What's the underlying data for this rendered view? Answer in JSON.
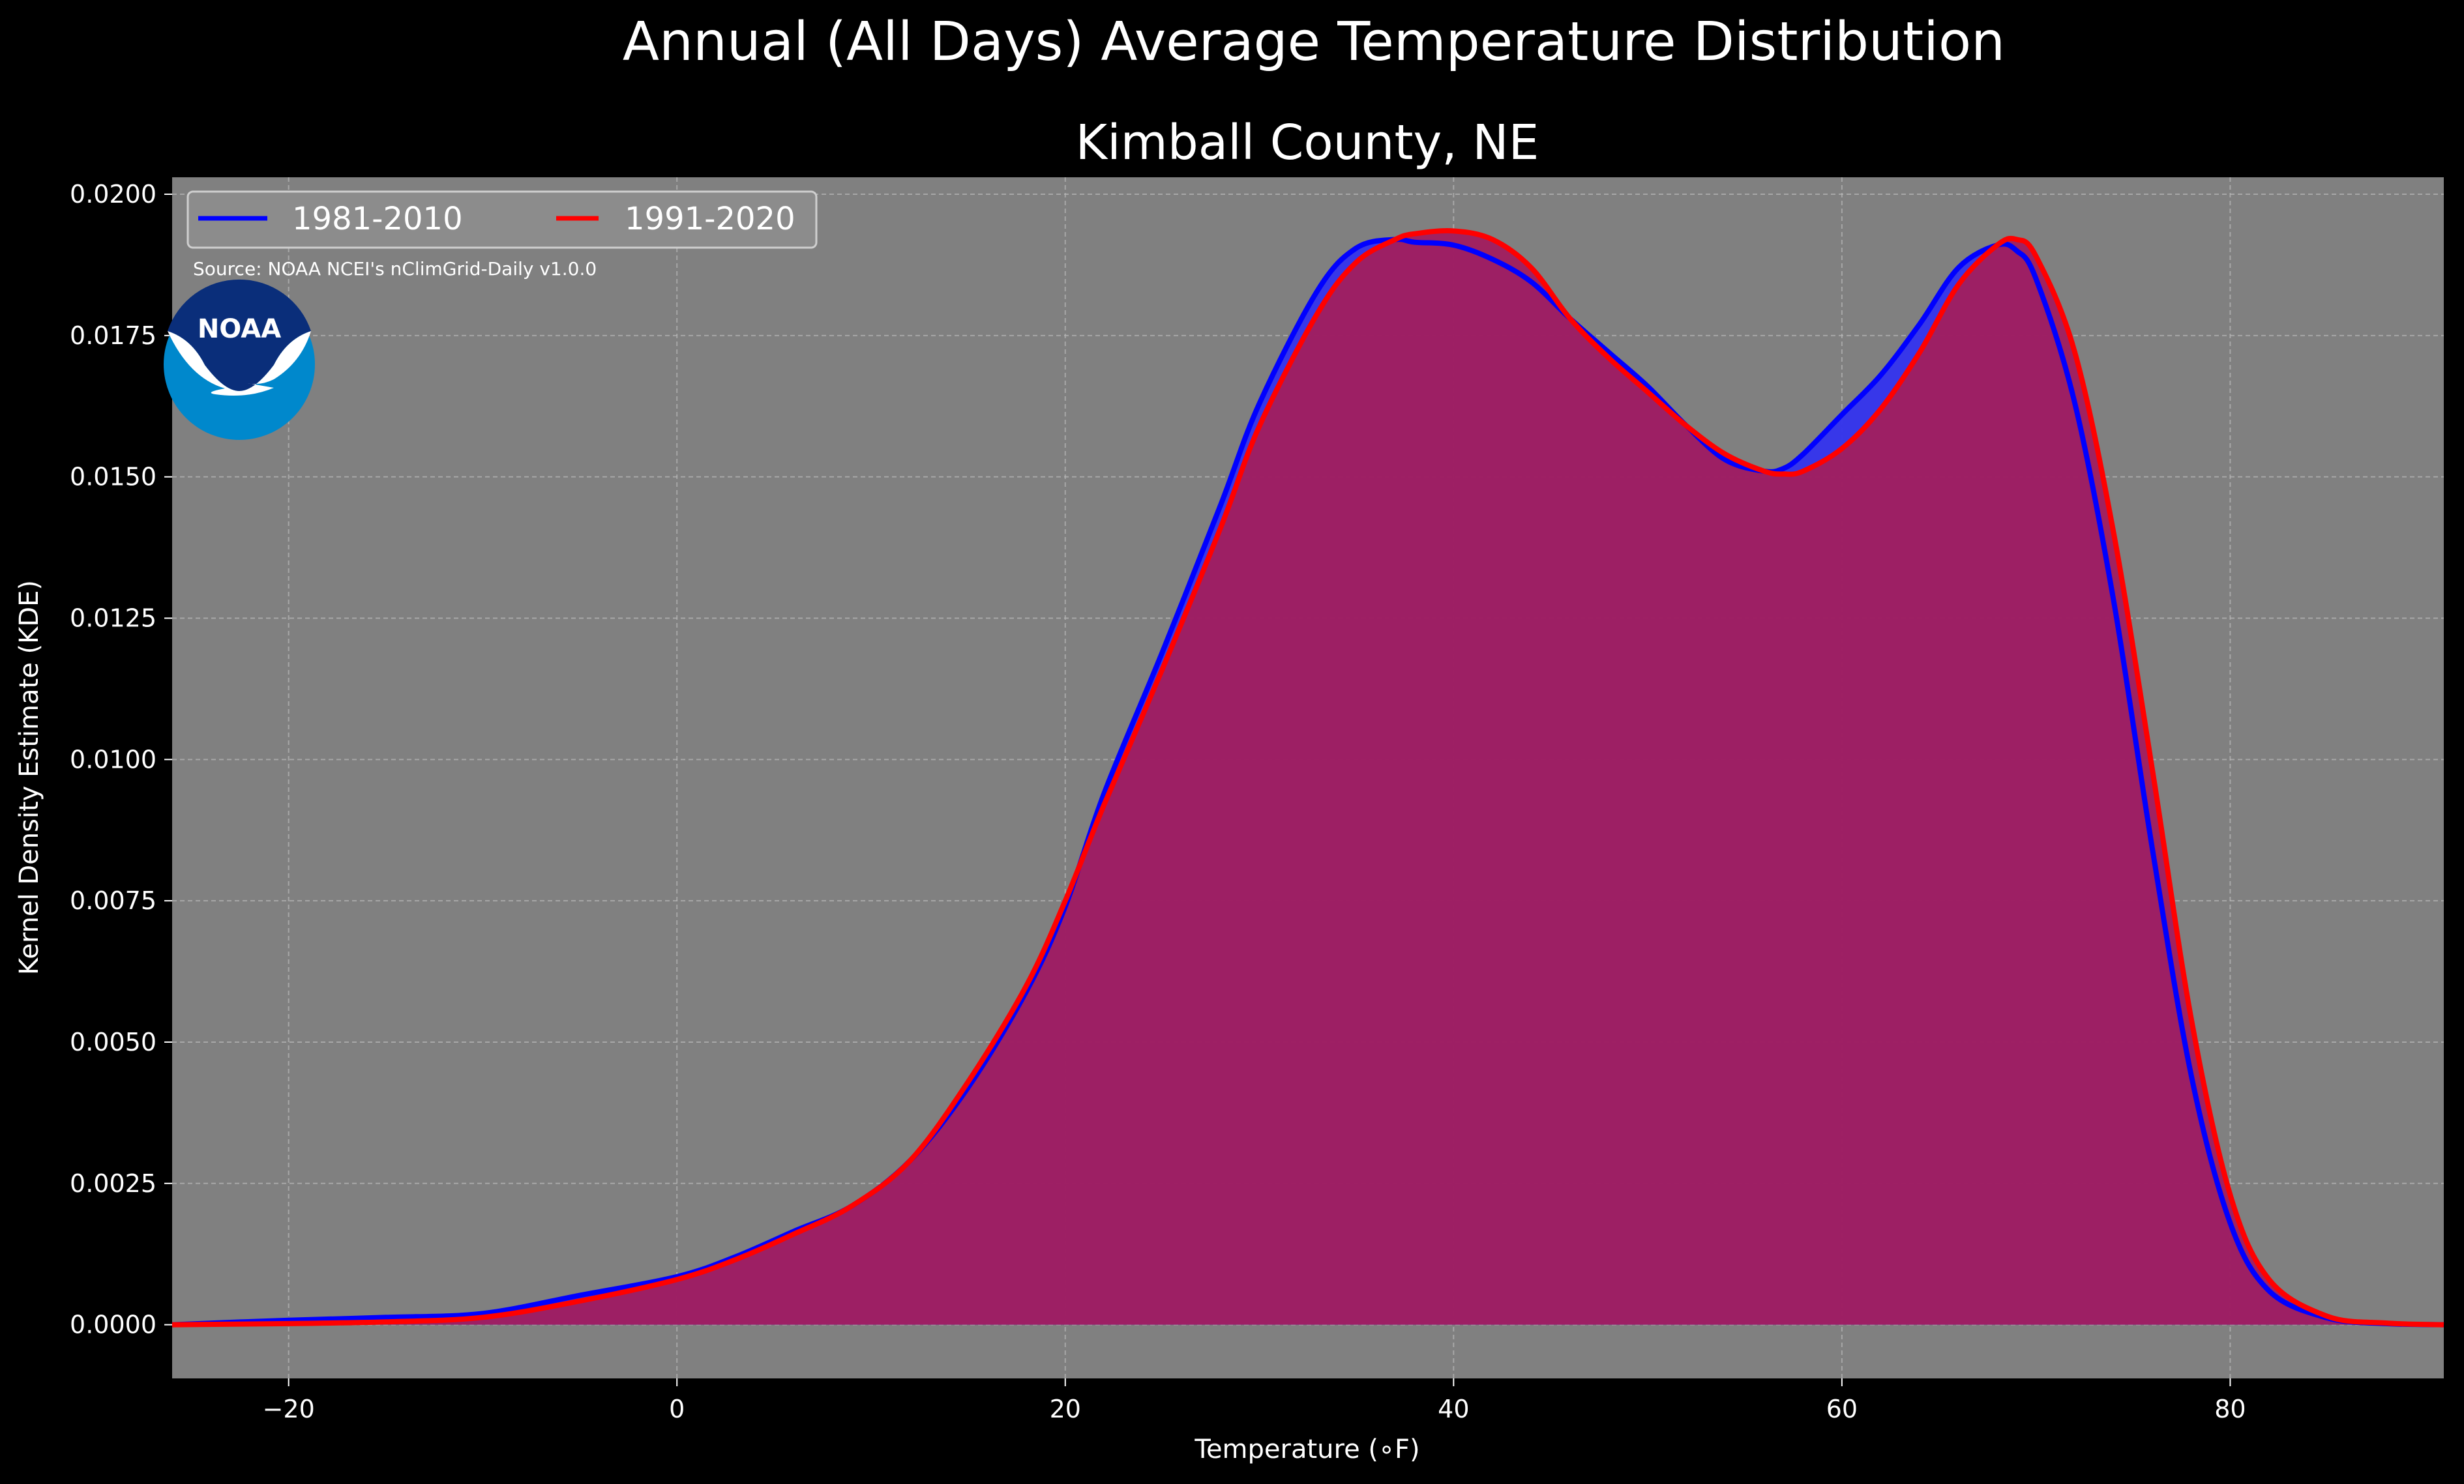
{
  "chart_data": {
    "type": "area",
    "suptitle": "Annual (All Days) Average Temperature Distribution",
    "title": "Kimball County, NE",
    "xlabel": "Temperature (∘F)",
    "ylabel": "Kernel Density Estimate (KDE)",
    "xlim": [
      -26,
      91
    ],
    "ylim": [
      -0.00095,
      0.0203
    ],
    "xticks": [
      -20,
      0,
      20,
      40,
      60,
      80
    ],
    "yticks": [
      0.0,
      0.0025,
      0.005,
      0.0075,
      0.01,
      0.0125,
      0.015,
      0.0175,
      0.02
    ],
    "xtick_labels": [
      "−20",
      "0",
      "20",
      "40",
      "60",
      "80"
    ],
    "ytick_labels": [
      "0.0000",
      "0.0025",
      "0.0050",
      "0.0075",
      "0.0100",
      "0.0125",
      "0.0150",
      "0.0175",
      "0.0200"
    ],
    "grid": true,
    "legend_position": "top-left",
    "annotation": "Source: NOAA NCEI's nClimGrid-Daily v1.0.0",
    "logo_text": "NOAA",
    "colors": {
      "background": "#000000",
      "axes_face": "#808080",
      "series_1981": "#0000ff",
      "series_1991": "#ff0000",
      "fill_1981": "#3333ee",
      "fill_1991": "#a11f5f"
    },
    "series": [
      {
        "name": "1981-2010",
        "x": [
          -26,
          -20,
          -15,
          -10,
          -5,
          0,
          3,
          6,
          9,
          12,
          15,
          18,
          20,
          22,
          25,
          28,
          30,
          33,
          35,
          37,
          38,
          40,
          42,
          44,
          46,
          48,
          50,
          52,
          54,
          56,
          57,
          58,
          60,
          62,
          64,
          66,
          68,
          69,
          70,
          72,
          74,
          76,
          78,
          80,
          82,
          85,
          88,
          91
        ],
        "y": [
          0.0,
          8e-05,
          0.00013,
          0.0002,
          0.00052,
          0.00085,
          0.0012,
          0.00165,
          0.0021,
          0.0029,
          0.0042,
          0.0059,
          0.0074,
          0.0094,
          0.0119,
          0.0145,
          0.0163,
          0.0183,
          0.01905,
          0.0192,
          0.01915,
          0.0191,
          0.01885,
          0.01845,
          0.0178,
          0.0172,
          0.0166,
          0.0159,
          0.0153,
          0.0151,
          0.01515,
          0.0154,
          0.0161,
          0.0168,
          0.0177,
          0.0187,
          0.0191,
          0.019,
          0.0185,
          0.0163,
          0.0128,
          0.0084,
          0.0044,
          0.0018,
          0.0006,
          0.00012,
          2e-05,
          0.0
        ]
      },
      {
        "name": "1991-2020",
        "x": [
          -26,
          -20,
          -15,
          -10,
          -5,
          0,
          3,
          6,
          9,
          12,
          15,
          18,
          20,
          22,
          25,
          28,
          30,
          33,
          35,
          37,
          38,
          40,
          42,
          44,
          46,
          48,
          50,
          52,
          54,
          56,
          57,
          58,
          60,
          62,
          64,
          66,
          68,
          69,
          70,
          72,
          74,
          76,
          78,
          80,
          82,
          85,
          88,
          91
        ],
        "y": [
          0.0,
          2e-05,
          5e-05,
          0.00013,
          0.00042,
          0.0008,
          0.00115,
          0.0016,
          0.0021,
          0.0029,
          0.0043,
          0.006,
          0.0075,
          0.0092,
          0.0116,
          0.0141,
          0.0159,
          0.0179,
          0.0188,
          0.0192,
          0.0193,
          0.01935,
          0.0192,
          0.0187,
          0.0178,
          0.0171,
          0.0165,
          0.0159,
          0.0154,
          0.0151,
          0.01505,
          0.0151,
          0.0155,
          0.0162,
          0.0172,
          0.0184,
          0.0191,
          0.0192,
          0.0189,
          0.0172,
          0.014,
          0.0098,
          0.0054,
          0.0023,
          0.0008,
          0.00015,
          3e-05,
          0.0
        ]
      }
    ]
  }
}
